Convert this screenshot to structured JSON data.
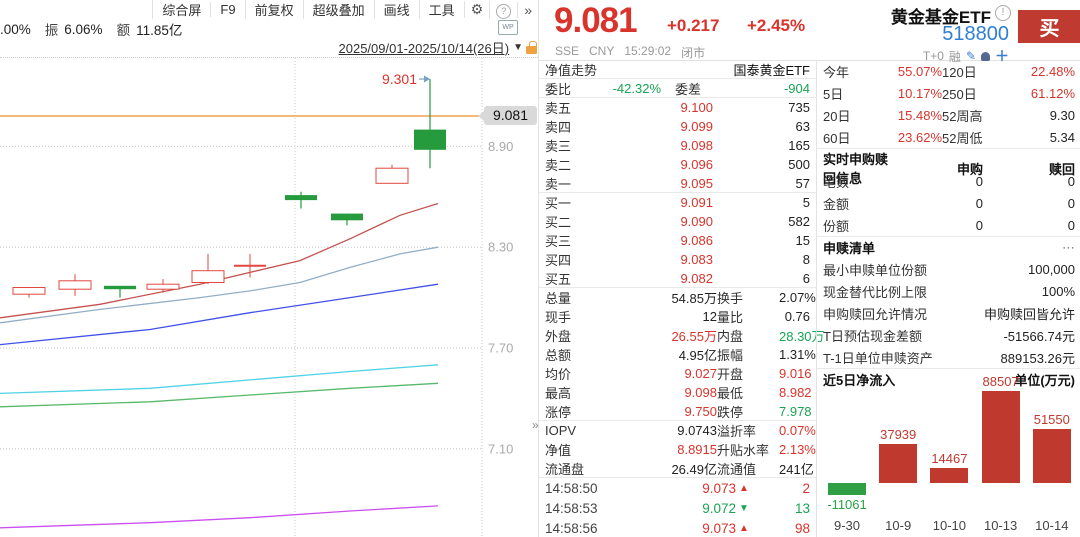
{
  "icons": {
    "gear": "⚙",
    "help": "?",
    "more": "»",
    "chevron_down": "▼",
    "wp": "WP",
    "pencil": "✎",
    "plus": "＋",
    "info": "!",
    "dots": "⋯"
  },
  "left_panel": {
    "toolbar": {
      "items": [
        "综合屏",
        "F9",
        "前复权",
        "超级叠加",
        "画线",
        "工具"
      ]
    },
    "info_bar": {
      "p1": ".00%",
      "amp_label": "振",
      "amp_value": "6.06%",
      "amt_label": "额",
      "amt_value": "11.85亿"
    },
    "date_range": "2025/09/01-2025/10/14(26日)"
  },
  "quote": {
    "price": "9.081",
    "change": "+0.217",
    "change_pct": "+2.45%",
    "exchange": "SSE",
    "currency": "CNY",
    "time": "15:29:02",
    "status": "闭市",
    "name": "黄金基金ETF",
    "code": "518800",
    "buy_label": "买",
    "t_plus": "T+0",
    "margin_flag": "融"
  },
  "orderbook": {
    "nav_label": "净值走势",
    "fund_name": "国泰黄金ETF",
    "weibi_label": "委比",
    "weibi_value": "-42.32%",
    "weicha_label": "委差",
    "weicha_value": "-904",
    "asks": [
      {
        "label": "卖五",
        "price": "9.100",
        "vol": "735"
      },
      {
        "label": "卖四",
        "price": "9.099",
        "vol": "63"
      },
      {
        "label": "卖三",
        "price": "9.098",
        "vol": "165"
      },
      {
        "label": "卖二",
        "price": "9.096",
        "vol": "500"
      },
      {
        "label": "卖一",
        "price": "9.095",
        "vol": "57"
      }
    ],
    "bids": [
      {
        "label": "买一",
        "price": "9.091",
        "vol": "5"
      },
      {
        "label": "买二",
        "price": "9.090",
        "vol": "582"
      },
      {
        "label": "买三",
        "price": "9.086",
        "vol": "15"
      },
      {
        "label": "买四",
        "price": "9.083",
        "vol": "8"
      },
      {
        "label": "买五",
        "price": "9.082",
        "vol": "6"
      }
    ]
  },
  "stats": {
    "rows": [
      {
        "l1": "总量",
        "v1": "54.85万",
        "c1": "k",
        "l2": "换手",
        "v2": "2.07%",
        "c2": "k"
      },
      {
        "l1": "现手",
        "v1": "12",
        "c1": "k",
        "l2": "量比",
        "v2": "0.76",
        "c2": "k"
      },
      {
        "l1": "外盘",
        "v1": "26.55万",
        "c1": "r",
        "l2": "内盘",
        "v2": "28.30万",
        "c2": "g"
      },
      {
        "l1": "总额",
        "v1": "4.95亿",
        "c1": "k",
        "l2": "振幅",
        "v2": "1.31%",
        "c2": "k"
      },
      {
        "l1": "均价",
        "v1": "9.027",
        "c1": "r",
        "l2": "开盘",
        "v2": "9.016",
        "c2": "r"
      },
      {
        "l1": "最高",
        "v1": "9.098",
        "c1": "r",
        "l2": "最低",
        "v2": "8.982",
        "c2": "r"
      },
      {
        "l1": "涨停",
        "v1": "9.750",
        "c1": "r",
        "l2": "跌停",
        "v2": "7.978",
        "c2": "g"
      },
      {
        "l1": "IOPV",
        "v1": "9.0743",
        "c1": "k",
        "l2": "溢折率",
        "v2": "0.07%",
        "c2": "r"
      },
      {
        "l1": "净值",
        "v1": "8.8915",
        "c1": "r",
        "l2": "升贴水率",
        "v2": "2.13%",
        "c2": "r"
      },
      {
        "l1": "流通盘",
        "v1": "26.49亿",
        "c1": "k",
        "l2": "流通值",
        "v2": "241亿",
        "c2": "k"
      }
    ]
  },
  "tape": {
    "rows": [
      {
        "time": "14:58:50",
        "price": "9.073",
        "arrow": "▲",
        "dir": "r",
        "vol": "2"
      },
      {
        "time": "14:58:53",
        "price": "9.072",
        "arrow": "▼",
        "dir": "g",
        "vol": "13"
      },
      {
        "time": "14:58:56",
        "price": "9.073",
        "arrow": "▲",
        "dir": "r",
        "vol": "98"
      }
    ]
  },
  "right_panel": {
    "perf": {
      "rows": [
        {
          "l1": "今年",
          "v1": "55.07%",
          "c1": "r",
          "l2": "120日",
          "v2": "22.48%",
          "c2": "r"
        },
        {
          "l1": "5日",
          "v1": "10.17%",
          "c1": "r",
          "l2": "250日",
          "v2": "61.12%",
          "c2": "r"
        },
        {
          "l1": "20日",
          "v1": "15.48%",
          "c1": "r",
          "l2": "52周高",
          "v2": "9.30",
          "c2": "k"
        },
        {
          "l1": "60日",
          "v1": "23.62%",
          "c1": "r",
          "l2": "52周低",
          "v2": "5.34",
          "c2": "k"
        }
      ]
    },
    "subscribe": {
      "title": "实时申购赎回信息",
      "col_a": "申购",
      "col_b": "赎回",
      "rows": [
        {
          "label": "笔数",
          "a": "0",
          "b": "0"
        },
        {
          "label": "金额",
          "a": "0",
          "b": "0"
        },
        {
          "label": "份额",
          "a": "0",
          "b": "0"
        }
      ]
    },
    "list": {
      "title": "申赎清单",
      "rows": [
        {
          "label": "最小申赎单位份额",
          "value": "100,000"
        },
        {
          "label": "现金替代比例上限",
          "value": "100%"
        },
        {
          "label": "申购赎回允许情况",
          "value": "申购赎回皆允许"
        },
        {
          "label": "T日预估现金差额",
          "value": "-51566.74元"
        },
        {
          "label": "T-1日单位申赎资产",
          "value": "889153.26元"
        }
      ]
    },
    "flow": {
      "title": "近5日净流入",
      "unit": "单位(万元)"
    }
  },
  "chart_data": [
    {
      "type": "candlestick",
      "title": "国泰黄金ETF 日K",
      "period": "2025/09/01-2025/10/14(26日)",
      "last_price": 9.081,
      "high_annotation": 9.301,
      "y_ticks": [
        8.9,
        8.3,
        7.7,
        7.1
      ],
      "up_color": "#e0483f",
      "down_color": "#259b3e",
      "last_price_line_color": "#f0a04a",
      "candles": [
        {
          "x": 29,
          "open": 8.02,
          "close": 8.06,
          "high": 8.06,
          "low": 8.0
        },
        {
          "x": 75,
          "open": 8.05,
          "close": 8.1,
          "high": 8.14,
          "low": 8.01
        },
        {
          "x": 120,
          "open": 8.07,
          "close": 8.05,
          "high": 8.07,
          "low": 8.0
        },
        {
          "x": 163,
          "open": 8.05,
          "close": 8.08,
          "high": 8.11,
          "low": 8.03
        },
        {
          "x": 208,
          "open": 8.09,
          "close": 8.16,
          "high": 8.26,
          "low": 8.08
        },
        {
          "x": 250,
          "open": 8.19,
          "close": 8.19,
          "high": 8.26,
          "low": 8.12
        },
        {
          "x": 301,
          "open": 8.61,
          "close": 8.58,
          "high": 8.63,
          "low": 8.53
        },
        {
          "x": 347,
          "open": 8.5,
          "close": 8.46,
          "high": 8.5,
          "low": 8.43
        },
        {
          "x": 392,
          "open": 8.68,
          "close": 8.77,
          "high": 8.79,
          "low": 8.68
        },
        {
          "x": 430,
          "open": 9.0,
          "close": 8.88,
          "high": 9.301,
          "low": 8.77
        }
      ],
      "moving_averages": [
        {
          "color": "#c4524e",
          "points": [
            [
              0,
              7.88
            ],
            [
              100,
              7.96
            ],
            [
              200,
              8.08
            ],
            [
              250,
              8.15
            ],
            [
              300,
              8.22
            ],
            [
              350,
              8.35
            ],
            [
              400,
              8.49
            ],
            [
              438,
              8.56
            ]
          ]
        },
        {
          "color": "#92aec6",
          "points": [
            [
              0,
              7.85
            ],
            [
              100,
              7.93
            ],
            [
              200,
              8.0
            ],
            [
              250,
              8.04
            ],
            [
              300,
              8.09
            ],
            [
              350,
              8.18
            ],
            [
              400,
              8.26
            ],
            [
              438,
              8.3
            ]
          ]
        },
        {
          "color": "#4150e8",
          "points": [
            [
              0,
              7.72
            ],
            [
              150,
              7.81
            ],
            [
              250,
              7.91
            ],
            [
              350,
              8.0
            ],
            [
              438,
              8.08
            ]
          ]
        },
        {
          "color": "#4fd3e4",
          "points": [
            [
              0,
              7.43
            ],
            [
              150,
              7.46
            ],
            [
              250,
              7.51
            ],
            [
              350,
              7.56
            ],
            [
              438,
              7.6
            ]
          ]
        },
        {
          "color": "#57b96b",
          "points": [
            [
              0,
              7.35
            ],
            [
              150,
              7.38
            ],
            [
              250,
              7.42
            ],
            [
              350,
              7.46
            ],
            [
              438,
              7.49
            ]
          ]
        },
        {
          "color": "#cb4ff0",
          "points": [
            [
              0,
              6.63
            ],
            [
              150,
              6.66
            ],
            [
              250,
              6.69
            ],
            [
              350,
              6.73
            ],
            [
              438,
              6.76
            ]
          ]
        }
      ],
      "grid_x": [
        295,
        482
      ]
    },
    {
      "type": "bar",
      "title": "近5日净流入",
      "ylabel": "单位(万元)",
      "categories": [
        "9-30",
        "10-9",
        "10-10",
        "10-13",
        "10-14"
      ],
      "values": [
        -11061,
        37939,
        14467,
        88507,
        51550
      ],
      "positive_color": "#c0392f",
      "negative_color": "#2f9e44",
      "negative_label_color": "#27a344"
    }
  ]
}
